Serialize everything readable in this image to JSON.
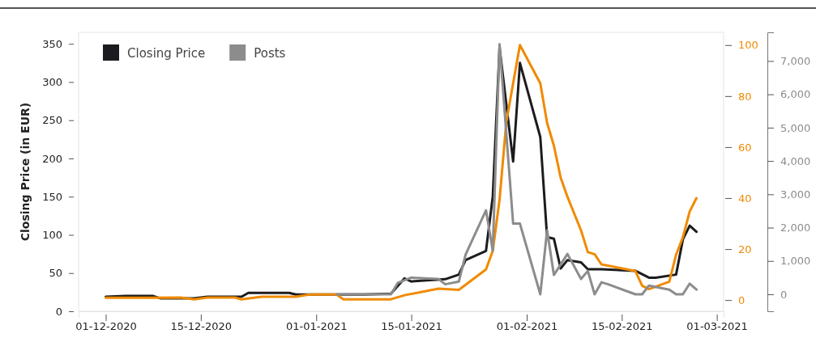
{
  "chart_data": {
    "type": "line",
    "ylabel": "Closing Price (in EUR)",
    "legend": "top left",
    "xlim": [
      "2020-11-27",
      "2021-03-02"
    ],
    "xticks": [
      {
        "value": "2020-12-01",
        "label": "01-12-2020"
      },
      {
        "value": "2020-12-15",
        "label": "15-12-2020"
      },
      {
        "value": "2021-01-01",
        "label": "01-01-2021"
      },
      {
        "value": "2021-01-15",
        "label": "15-01-2021"
      },
      {
        "value": "2021-02-01",
        "label": "01-02-2021"
      },
      {
        "value": "2021-02-15",
        "label": "15-02-2021"
      },
      {
        "value": "2021-03-01",
        "label": "01-03-2021"
      }
    ],
    "ylim": [
      0,
      365
    ],
    "yticks": [
      0,
      50,
      100,
      150,
      200,
      250,
      300,
      350
    ],
    "y2lim": [
      -4.4,
      105
    ],
    "y2ticks": [
      0,
      20,
      40,
      60,
      80,
      100
    ],
    "y3lim": [
      -510,
      7860
    ],
    "y3ticks": [
      {
        "value": 0,
        "label": "0"
      },
      {
        "value": 1000,
        "label": "1,000"
      },
      {
        "value": 2000,
        "label": "2,000"
      },
      {
        "value": 3000,
        "label": "3,000"
      },
      {
        "value": 4000,
        "label": "4,000"
      },
      {
        "value": 5000,
        "label": "5,000"
      },
      {
        "value": 6000,
        "label": "6,000"
      },
      {
        "value": 7000,
        "label": "7,000"
      }
    ],
    "series": [
      {
        "name": "Closing Price",
        "color": "#1c1c20",
        "x": [
          "2020-12-01",
          "2020-12-04",
          "2020-12-08",
          "2020-12-09",
          "2020-12-14",
          "2020-12-16",
          "2020-12-21",
          "2020-12-22",
          "2020-12-28",
          "2020-12-29",
          "2021-01-05",
          "2021-01-08",
          "2021-01-12",
          "2021-01-14",
          "2021-01-15",
          "2021-01-20",
          "2021-01-22",
          "2021-01-23",
          "2021-01-26",
          "2021-01-27",
          "2021-01-28",
          "2021-01-30",
          "2021-01-31",
          "2021-02-03",
          "2021-02-04",
          "2021-02-05",
          "2021-02-06",
          "2021-02-07",
          "2021-02-09",
          "2021-02-10",
          "2021-02-12",
          "2021-02-17",
          "2021-02-19",
          "2021-02-20",
          "2021-02-23",
          "2021-02-24",
          "2021-02-25",
          "2021-02-26"
        ],
        "values": [
          19,
          20,
          20,
          17,
          17,
          19,
          19,
          24,
          24,
          22,
          22,
          22,
          23,
          43,
          39,
          42,
          48,
          67,
          79,
          150,
          345,
          196,
          325,
          228,
          97,
          95,
          56,
          67,
          64,
          55,
          55,
          53,
          44,
          44,
          48,
          94,
          112,
          104
        ]
      },
      {
        "color": "#f08a00",
        "axis": "y2",
        "x": [
          "2020-12-01",
          "2020-12-07",
          "2020-12-12",
          "2020-12-14",
          "2020-12-16",
          "2020-12-20",
          "2020-12-21",
          "2020-12-24",
          "2020-12-29",
          "2020-12-31",
          "2021-01-04",
          "2021-01-05",
          "2021-01-12",
          "2021-01-14",
          "2021-01-19",
          "2021-01-22",
          "2021-01-26",
          "2021-01-27",
          "2021-01-28",
          "2021-01-29",
          "2021-01-31",
          "2021-02-03",
          "2021-02-04",
          "2021-02-05",
          "2021-02-06",
          "2021-02-07",
          "2021-02-09",
          "2021-02-10",
          "2021-02-11",
          "2021-02-12",
          "2021-02-17",
          "2021-02-18",
          "2021-02-19",
          "2021-02-22",
          "2021-02-23",
          "2021-02-24",
          "2021-02-25",
          "2021-02-26"
        ],
        "values": [
          0.9,
          0.9,
          1,
          0.3,
          1,
          1,
          0.3,
          1.3,
          1.3,
          2.2,
          2.2,
          0.3,
          0.3,
          1.9,
          4.5,
          4,
          12,
          19.3,
          39.4,
          70,
          100,
          85,
          69.5,
          60.6,
          48,
          40.5,
          27.3,
          18.8,
          18,
          14,
          11.4,
          5.6,
          4.3,
          7.2,
          17.8,
          24.6,
          34.7,
          40
        ]
      },
      {
        "name": "Posts",
        "color": "#8c8c8c",
        "axis": "y3",
        "x": [
          "2021-01-04",
          "2021-01-12",
          "2021-01-13",
          "2021-01-15",
          "2021-01-19",
          "2021-01-20",
          "2021-01-22",
          "2021-01-23",
          "2021-01-26",
          "2021-01-27",
          "2021-01-28",
          "2021-01-30",
          "2021-01-31",
          "2021-02-03",
          "2021-02-04",
          "2021-02-05",
          "2021-02-07",
          "2021-02-09",
          "2021-02-10",
          "2021-02-11",
          "2021-02-12",
          "2021-02-13",
          "2021-02-17",
          "2021-02-18",
          "2021-02-19",
          "2021-02-22",
          "2021-02-23",
          "2021-02-24",
          "2021-02-25",
          "2021-02-26"
        ],
        "values": [
          0,
          0,
          340,
          500,
          460,
          300,
          380,
          1190,
          2520,
          1310,
          7500,
          2120,
          2120,
          0,
          1920,
          580,
          1210,
          460,
          700,
          0,
          360,
          300,
          0,
          0,
          260,
          140,
          0,
          0,
          320,
          140
        ]
      }
    ]
  }
}
